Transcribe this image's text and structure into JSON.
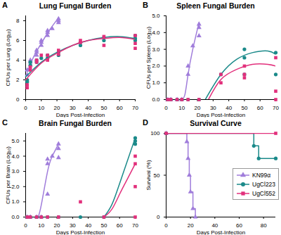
{
  "chart_data": [
    {
      "type": "scatter",
      "annotations": [
        "A"
      ],
      "title": "Lung Fungal Burden",
      "x_label": "Days Post-Infection",
      "y_label": "CFUs per Lung (Log₁₀)",
      "xlim": [
        0,
        70
      ],
      "xticks": [
        0,
        10,
        20,
        30,
        40,
        50,
        60,
        70
      ],
      "ylim": [
        0,
        8.5
      ],
      "yticks": [
        0,
        2,
        4,
        6,
        8
      ],
      "series": [
        {
          "name": "KN99α",
          "color": "#a07ddb",
          "marker": "triangle",
          "x": [
            1,
            1,
            3,
            3,
            3,
            7,
            7,
            7,
            10,
            10,
            10,
            14,
            14,
            14,
            17,
            21,
            21,
            21
          ],
          "values": [
            2.5,
            3.0,
            3.5,
            3.8,
            4.0,
            4.8,
            5.0,
            4.5,
            5.5,
            6.0,
            5.8,
            6.8,
            7.0,
            6.5,
            7.2,
            8.2,
            8.0,
            7.8
          ],
          "fit": {
            "x": [
              1,
              5,
              10,
              15,
              21
            ],
            "values": [
              2.8,
              4.3,
              5.7,
              7.0,
              8.3
            ]
          }
        },
        {
          "name": "UgCl223",
          "color": "#1b8a8a",
          "marker": "circle",
          "x": [
            1,
            1,
            3,
            3,
            7,
            7,
            10,
            14,
            14,
            21,
            21,
            35,
            35,
            50,
            50,
            70,
            70,
            70
          ],
          "values": [
            2.0,
            1.8,
            3.8,
            3.5,
            4.0,
            3.8,
            4.2,
            4.5,
            4.2,
            4.8,
            4.5,
            5.5,
            5.8,
            6.0,
            6.3,
            6.5,
            6.2,
            6.0
          ],
          "fit": {
            "x": [
              0,
              10,
              20,
              30,
              40,
              50,
              60,
              70
            ],
            "values": [
              2.3,
              3.8,
              4.8,
              5.5,
              6.0,
              6.3,
              6.4,
              6.2
            ]
          }
        },
        {
          "name": "UgCl552",
          "color": "#e2307c",
          "marker": "square",
          "x": [
            1,
            1,
            3,
            3,
            7,
            7,
            10,
            14,
            14,
            21,
            21,
            35,
            35,
            50,
            50,
            70,
            70,
            70
          ],
          "values": [
            1.5,
            1.2,
            3.0,
            3.3,
            3.8,
            4.0,
            4.5,
            4.0,
            4.5,
            4.6,
            5.0,
            6.0,
            5.8,
            5.5,
            6.4,
            5.7,
            5.2,
            6.5
          ],
          "fit": {
            "x": [
              0,
              10,
              20,
              30,
              40,
              50,
              60,
              70
            ],
            "values": [
              2.0,
              3.7,
              4.7,
              5.5,
              6.0,
              6.2,
              6.3,
              6.1
            ]
          }
        }
      ]
    },
    {
      "type": "scatter",
      "annotations": [
        "C"
      ],
      "title": "Brain Fungal Burden",
      "x_label": "Days Post-Infection",
      "y_label": "CFUs per Brain (Log₁₀)",
      "xlim": [
        0,
        70
      ],
      "xticks": [
        0,
        10,
        20,
        30,
        40,
        50,
        60,
        70
      ],
      "ylim": [
        0,
        5.5
      ],
      "yticks": [
        0,
        1,
        2,
        3,
        4,
        5
      ],
      "series": [
        {
          "name": "KN99α",
          "color": "#a07ddb",
          "marker": "triangle",
          "x": [
            1,
            3,
            7,
            10,
            14,
            14,
            14,
            17,
            21,
            21,
            21
          ],
          "values": [
            0,
            0,
            0,
            0,
            3.8,
            3.5,
            1.5,
            4.0,
            4.5,
            4.8,
            3.9
          ],
          "fit": {
            "x": [
              8,
              10,
              14,
              17,
              21
            ],
            "values": [
              0,
              0.8,
              3.0,
              4.0,
              4.8
            ]
          }
        },
        {
          "name": "UgCl223",
          "color": "#1b8a8a",
          "marker": "circle",
          "x": [
            1,
            3,
            7,
            10,
            14,
            21,
            35,
            50,
            70,
            70,
            70
          ],
          "values": [
            0,
            0,
            0,
            0,
            0,
            0,
            0,
            0,
            5.2,
            5.0,
            4.8
          ],
          "fit": {
            "x": [
              50,
              55,
              60,
              65,
              70
            ],
            "values": [
              0,
              0.8,
              2.2,
              3.7,
              5.2
            ]
          }
        },
        {
          "name": "UgCl552",
          "color": "#e2307c",
          "marker": "square",
          "x": [
            1,
            3,
            7,
            10,
            14,
            21,
            35,
            50,
            70,
            70,
            70,
            70
          ],
          "values": [
            0,
            0,
            0,
            0,
            0,
            0,
            1.0,
            0,
            4.0,
            3.5,
            2.0,
            0
          ],
          "fit": {
            "x": [
              50,
              55,
              60,
              65,
              70
            ],
            "values": [
              0,
              0.5,
              1.5,
              2.5,
              3.5
            ]
          }
        }
      ]
    },
    {
      "type": "scatter",
      "annotations": [
        "B"
      ],
      "title": "Spleen Fungal Burden",
      "x_label": "Days Post-Infection",
      "y_label": "CFUs per Spleen (Log₁₀)",
      "xlim": [
        0,
        70
      ],
      "xticks": [
        0,
        10,
        20,
        30,
        40,
        50,
        60,
        70
      ],
      "ylim": [
        0,
        5
      ],
      "yticks": [
        0,
        1,
        2,
        3,
        4,
        5
      ],
      "series": [
        {
          "name": "KN99α",
          "color": "#a07ddb",
          "marker": "triangle",
          "x": [
            1,
            3,
            7,
            10,
            14,
            14,
            17,
            21,
            21,
            21
          ],
          "values": [
            0,
            0,
            0,
            0,
            1.5,
            2.0,
            3.2,
            4.5,
            4.3,
            3.8
          ],
          "fit": {
            "x": [
              10,
              12,
              14,
              17,
              21
            ],
            "values": [
              0,
              0.3,
              1.5,
              3.0,
              4.6
            ]
          }
        },
        {
          "name": "UgCl223",
          "color": "#1b8a8a",
          "marker": "circle",
          "x": [
            1,
            3,
            7,
            10,
            14,
            21,
            35,
            50,
            50,
            50,
            70,
            70
          ],
          "values": [
            0,
            0,
            0,
            0,
            0,
            0,
            1.5,
            2.5,
            3.0,
            1.5,
            2.8,
            1.5
          ],
          "fit": {
            "x": [
              25,
              35,
              45,
              55,
              65,
              70
            ],
            "values": [
              0,
              1.5,
              2.4,
              2.8,
              2.9,
              2.7
            ]
          }
        },
        {
          "name": "UgCl552",
          "color": "#e2307c",
          "marker": "square",
          "x": [
            1,
            3,
            7,
            10,
            14,
            21,
            35,
            35,
            50,
            50,
            50,
            70,
            70,
            70
          ],
          "values": [
            0,
            0,
            0,
            0,
            0,
            0,
            1.5,
            1.0,
            2.0,
            1.5,
            1.3,
            2.5,
            0.5,
            0
          ],
          "fit": {
            "x": [
              27,
              35,
              45,
              55,
              65,
              70
            ],
            "values": [
              0,
              1.2,
              1.8,
              2.1,
              2.1,
              2.0
            ]
          }
        }
      ]
    },
    {
      "type": "step",
      "annotations": [
        "D"
      ],
      "title": "Survival Curve",
      "x_label": "Days Post-Infection",
      "y_label": "Survival (%)",
      "xlim": [
        0,
        90
      ],
      "xticks": [
        0,
        20,
        40,
        60,
        80
      ],
      "ylim": [
        0,
        100
      ],
      "yticks": [
        0,
        50,
        100
      ],
      "legend": "right",
      "series": [
        {
          "name": "KN99α",
          "color": "#a07ddb",
          "marker": "triangle",
          "x": [
            0,
            17,
            18,
            19,
            20,
            22,
            24
          ],
          "values": [
            100,
            90,
            70,
            50,
            30,
            10,
            0
          ]
        },
        {
          "name": "UgCl223",
          "color": "#1b8a8a",
          "marker": "circle",
          "x": [
            0,
            72,
            76,
            90
          ],
          "values": [
            100,
            85,
            70,
            70
          ]
        },
        {
          "name": "UgCl552",
          "color": "#e2307c",
          "marker": "square",
          "x": [
            0,
            90
          ],
          "values": [
            100,
            100
          ]
        }
      ]
    }
  ]
}
